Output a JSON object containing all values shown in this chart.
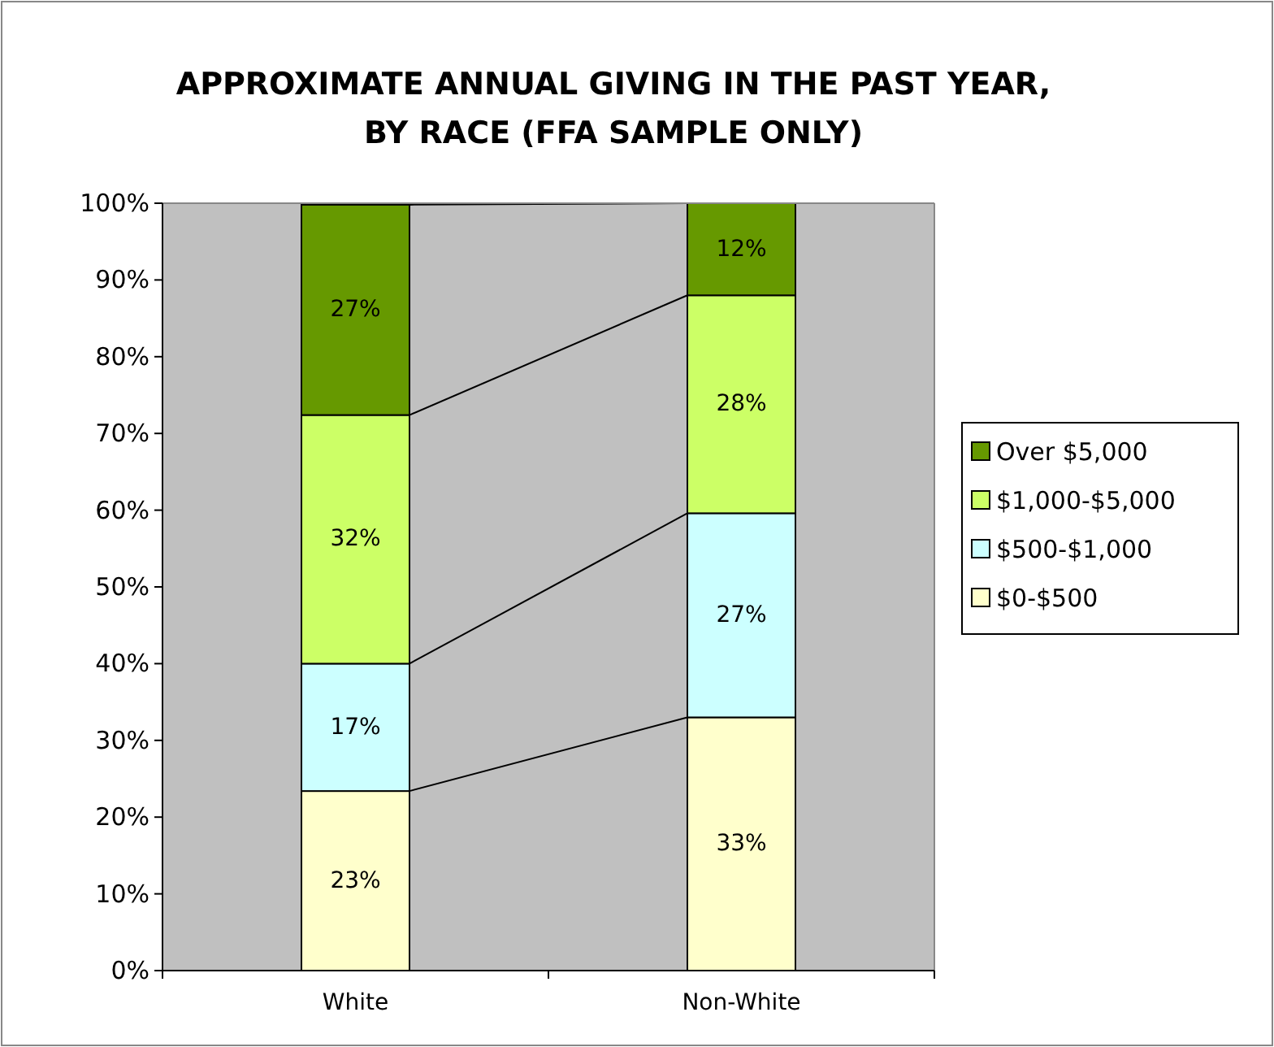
{
  "chart_data": {
    "type": "bar",
    "title": "APPROXIMATE ANNUAL GIVING IN THE PAST YEAR, BY RACE (FFA SAMPLE ONLY)",
    "categories": [
      "White",
      "Non-White"
    ],
    "stacked": true,
    "series": [
      {
        "name": "$0-$500",
        "color": "#ffffcc",
        "values": [
          23.4,
          33
        ],
        "value_labels": [
          "23%",
          "33%"
        ]
      },
      {
        "name": "$500-$1,000",
        "color": "#ccffff",
        "values": [
          16.6,
          26.6
        ],
        "value_labels": [
          "17%",
          "27%"
        ]
      },
      {
        "name": "$1,000-$5,000",
        "color": "#ccff66",
        "values": [
          32.4,
          28.4
        ],
        "value_labels": [
          "32%",
          "28%"
        ]
      },
      {
        "name": "Over $5,000",
        "color": "#669900",
        "values": [
          27.4,
          12
        ],
        "value_labels": [
          "27%",
          "12%"
        ]
      }
    ],
    "ylim": [
      0,
      100
    ],
    "yticks": [
      {
        "value": 0,
        "label": "0%"
      },
      {
        "value": 10,
        "label": "10%"
      },
      {
        "value": 20,
        "label": "20%"
      },
      {
        "value": 30,
        "label": "30%"
      },
      {
        "value": 40,
        "label": "40%"
      },
      {
        "value": 50,
        "label": "50%"
      },
      {
        "value": 60,
        "label": "60%"
      },
      {
        "value": 70,
        "label": "70%"
      },
      {
        "value": 80,
        "label": "80%"
      },
      {
        "value": 90,
        "label": "90%"
      },
      {
        "value": 100,
        "label": "100%"
      }
    ],
    "grid": false,
    "legend": "right"
  }
}
